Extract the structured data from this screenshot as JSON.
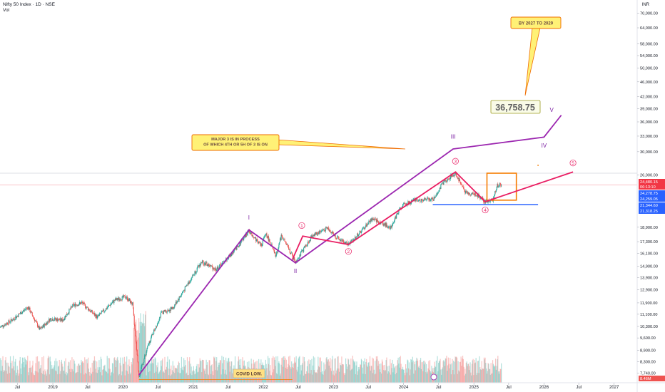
{
  "chart_data": {
    "type": "candlestick",
    "title": "Nifty 50 Index · 1D · NSE",
    "subtitle": "Vol",
    "currency": "INR",
    "y_scale": "log",
    "y_range": [
      7300,
      72000
    ],
    "x_range": [
      "2018-04-01",
      "2027-05-01"
    ],
    "y_ticks": [
      "70,000.00",
      "64,000.00",
      "58,000.00",
      "54,000.00",
      "50,000.00",
      "46,000.00",
      "42,000.00",
      "39,000.00",
      "36,000.00",
      "33,000.00",
      "30,000.00",
      "26,000.00",
      "18,900.00",
      "17,300.00",
      "16,100.00",
      "14,900.00",
      "13,900.00",
      "12,900.00",
      "11,900.00",
      "11,100.00",
      "10,300.00",
      "9,600.00",
      "8,900.00",
      "8,300.00",
      "7,740.00"
    ],
    "x_ticks": [
      {
        "label": "Jul",
        "date": "2018-07-01"
      },
      {
        "label": "2019",
        "date": "2019-01-01"
      },
      {
        "label": "Jul",
        "date": "2019-07-01"
      },
      {
        "label": "2020",
        "date": "2020-01-01"
      },
      {
        "label": "Jul",
        "date": "2020-07-01"
      },
      {
        "label": "2021",
        "date": "2021-01-01"
      },
      {
        "label": "Jul",
        "date": "2021-07-01"
      },
      {
        "label": "2022",
        "date": "2022-01-01"
      },
      {
        "label": "Jul",
        "date": "2022-07-01"
      },
      {
        "label": "2023",
        "date": "2023-01-01"
      },
      {
        "label": "Jul",
        "date": "2023-07-01"
      },
      {
        "label": "2024",
        "date": "2024-01-01"
      },
      {
        "label": "Jul",
        "date": "2024-07-01"
      },
      {
        "label": "2025",
        "date": "2025-01-01"
      },
      {
        "label": "Jul",
        "date": "2025-07-01"
      },
      {
        "label": "2026",
        "date": "2026-01-01"
      },
      {
        "label": "Jul",
        "date": "2026-07-01"
      },
      {
        "label": "2027",
        "date": "2027-01-01"
      }
    ],
    "price_path": [
      [
        "2018-04-01",
        10250
      ],
      [
        "2018-06-01",
        10700
      ],
      [
        "2018-08-25",
        11600
      ],
      [
        "2018-10-25",
        10100
      ],
      [
        "2018-12-20",
        10800
      ],
      [
        "2019-02-20",
        10700
      ],
      [
        "2019-04-15",
        11700
      ],
      [
        "2019-06-01",
        11900
      ],
      [
        "2019-08-20",
        10900
      ],
      [
        "2019-11-20",
        12100
      ],
      [
        "2020-01-15",
        12350
      ],
      [
        "2020-02-20",
        11800
      ],
      [
        "2020-03-24",
        7600
      ],
      [
        "2020-05-15",
        9300
      ],
      [
        "2020-07-20",
        11200
      ],
      [
        "2020-09-15",
        11500
      ],
      [
        "2020-11-15",
        12900
      ],
      [
        "2021-01-15",
        14500
      ],
      [
        "2021-02-15",
        15300
      ],
      [
        "2021-05-01",
        14600
      ],
      [
        "2021-08-01",
        16300
      ],
      [
        "2021-10-18",
        18500
      ],
      [
        "2021-12-20",
        16900
      ],
      [
        "2022-01-15",
        18200
      ],
      [
        "2022-03-07",
        15800
      ],
      [
        "2022-04-05",
        18000
      ],
      [
        "2022-06-17",
        15300
      ],
      [
        "2022-09-15",
        18000
      ],
      [
        "2022-12-01",
        18800
      ],
      [
        "2023-01-25",
        17600
      ],
      [
        "2023-03-20",
        17000
      ],
      [
        "2023-06-01",
        18600
      ],
      [
        "2023-07-20",
        19900
      ],
      [
        "2023-10-25",
        18900
      ],
      [
        "2023-12-20",
        21500
      ],
      [
        "2024-03-01",
        22300
      ],
      [
        "2024-06-04",
        22400
      ],
      [
        "2024-07-25",
        24800
      ],
      [
        "2024-09-27",
        26250
      ],
      [
        "2024-11-20",
        23300
      ],
      [
        "2025-01-15",
        23100
      ],
      [
        "2025-02-28",
        22100
      ],
      [
        "2025-04-07",
        22200
      ],
      [
        "2025-05-01",
        24300
      ],
      [
        "2025-05-25",
        24480
      ]
    ],
    "volume_unit_label": "8.46M",
    "overlays": {
      "purple_wave": {
        "color": "#9c27b0",
        "points": [
          [
            "2020-03-24",
            7650
          ],
          [
            "2021-10-18",
            18600
          ],
          [
            "2022-06-17",
            15200
          ],
          [
            "2024-09-15",
            30500
          ],
          [
            "2026-01-01",
            32800
          ],
          [
            "2026-04-01",
            37500
          ]
        ],
        "labels": [
          {
            "text": "I",
            "date": "2021-10-18",
            "price": 19800
          },
          {
            "text": "II",
            "date": "2022-06-17",
            "price": 14300
          },
          {
            "text": "III",
            "date": "2024-09-15",
            "price": 32500
          },
          {
            "text": "IV",
            "date": "2026-01-01",
            "price": 30800
          },
          {
            "text": "V",
            "date": "2026-02-10",
            "price": 38300
          }
        ]
      },
      "red_wave": {
        "color": "#e91e63",
        "points": [
          [
            "2022-06-01",
            15500
          ],
          [
            "2022-07-25",
            17900
          ],
          [
            "2023-03-20",
            17000
          ],
          [
            "2024-09-27",
            26500
          ],
          [
            "2025-03-01",
            22100
          ],
          [
            "2026-06-01",
            26500
          ]
        ],
        "labels": [
          {
            "text": "1",
            "date": "2022-07-20",
            "price": 19100
          },
          {
            "text": "2",
            "date": "2023-03-20",
            "price": 16300
          },
          {
            "text": "3",
            "date": "2024-09-27",
            "price": 28300
          },
          {
            "text": "4",
            "date": "2025-03-01",
            "price": 21000
          },
          {
            "text": "5",
            "date": "2026-06-01",
            "price": 28000
          }
        ]
      },
      "support_line": {
        "color": "#2962ff",
        "price": 21700,
        "from": "2024-06-01",
        "to": "2025-12-01"
      },
      "orange_box": {
        "color": "#f57c00",
        "from": "2025-03-10",
        "to": "2025-08-10",
        "top": 26300,
        "bottom": 22300
      },
      "covid_line": {
        "color": "#f57c00",
        "from": "2020-03-24",
        "to": "2022-06-01",
        "price": 7580
      }
    },
    "annotations": {
      "major3": [
        "MAJOR 3 IS IN PROCESS",
        "OF WHICH 4TH OR 5H OF 3 IS ON"
      ],
      "target_year": "BY 2027 TO 2029",
      "target_value": "36,758.75",
      "covid": "COVID LOW."
    },
    "price_tags": [
      {
        "text": "24,480.15",
        "color": "#f23645"
      },
      {
        "text": "06:13:10",
        "color": "#f23645"
      },
      {
        "text": "24,278.75",
        "color": "#2962ff"
      },
      {
        "text": "24,259.05",
        "color": "#2962ff"
      },
      {
        "text": "21,344.60",
        "color": "#2962ff"
      },
      {
        "text": "21,318.25",
        "color": "#2962ff"
      }
    ]
  }
}
